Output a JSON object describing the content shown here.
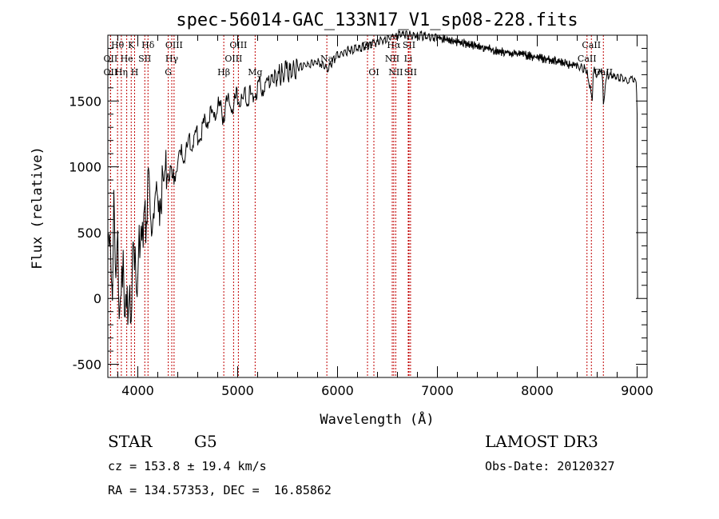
{
  "chart_data": {
    "type": "line",
    "title": "spec-56014-GAC_133N17_V1_sp08-228.fits",
    "xlabel": "Wavelength (Å)",
    "ylabel": "Flux (relative)",
    "xlim": [
      3700,
      9100
    ],
    "ylim": [
      -600,
      2000
    ],
    "x_ticks": [
      4000,
      5000,
      6000,
      7000,
      8000,
      9000
    ],
    "y_ticks": [
      -500,
      0,
      500,
      1000,
      1500
    ],
    "series": [
      {
        "name": "flux",
        "x": [
          3700,
          3720,
          3740,
          3760,
          3780,
          3800,
          3820,
          3840,
          3860,
          3880,
          3900,
          3920,
          3940,
          3960,
          3980,
          4000,
          4020,
          4040,
          4060,
          4080,
          4100,
          4150,
          4200,
          4250,
          4300,
          4350,
          4400,
          4450,
          4500,
          4550,
          4600,
          4650,
          4700,
          4750,
          4800,
          4850,
          4900,
          4950,
          5000,
          5050,
          5100,
          5150,
          5200,
          5250,
          5300,
          5400,
          5500,
          5600,
          5700,
          5800,
          5900,
          6000,
          6100,
          6200,
          6300,
          6400,
          6500,
          6600,
          6700,
          6800,
          6900,
          7000,
          7200,
          7400,
          7600,
          7800,
          8000,
          8200,
          8400,
          8500,
          8550,
          8560,
          8600,
          8650,
          8662,
          8700,
          8800,
          8900,
          8950,
          8990,
          9000,
          9005
        ],
        "y": [
          300,
          600,
          -100,
          700,
          200,
          500,
          -200,
          300,
          100,
          -150,
          0,
          -100,
          50,
          400,
          100,
          200,
          500,
          400,
          700,
          600,
          800,
          650,
          750,
          800,
          1000,
          900,
          1050,
          1100,
          1150,
          1200,
          1250,
          1300,
          1350,
          1400,
          1450,
          1400,
          1500,
          1450,
          1550,
          1500,
          1550,
          1520,
          1600,
          1600,
          1650,
          1700,
          1720,
          1750,
          1780,
          1800,
          1750,
          1850,
          1880,
          1900,
          1920,
          1950,
          1980,
          2000,
          2000,
          2000,
          1990,
          1980,
          1950,
          1920,
          1880,
          1860,
          1830,
          1800,
          1760,
          1740,
          1500,
          1740,
          1700,
          1720,
          1500,
          1700,
          1680,
          1660,
          1660,
          1650,
          1400,
          0
        ]
      }
    ],
    "spectral_lines": [
      {
        "name": "Hθ",
        "wavelength": 3797,
        "row": 1
      },
      {
        "name": "OII",
        "wavelength": 3727,
        "row": 2
      },
      {
        "name": "OII",
        "wavelength": 3727,
        "row": 3
      },
      {
        "name": "K",
        "wavelength": 3934,
        "row": 1
      },
      {
        "name": "He",
        "wavelength": 3889,
        "row": 2
      },
      {
        "name": "Hη",
        "wavelength": 3835,
        "row": 3
      },
      {
        "name": "Hδ",
        "wavelength": 4102,
        "row": 1
      },
      {
        "name": "SII",
        "wavelength": 4070,
        "row": 2
      },
      {
        "name": "H",
        "wavelength": 3968,
        "row": 3
      },
      {
        "name": "OIII",
        "wavelength": 4363,
        "row": 1
      },
      {
        "name": "Hγ",
        "wavelength": 4340,
        "row": 2
      },
      {
        "name": "G",
        "wavelength": 4305,
        "row": 3
      },
      {
        "name": "OIII",
        "wavelength": 5007,
        "row": 1
      },
      {
        "name": "OIII",
        "wavelength": 4959,
        "row": 2
      },
      {
        "name": "Hβ",
        "wavelength": 4861,
        "row": 3
      },
      {
        "name": "Mg",
        "wavelength": 5175,
        "row": 3
      },
      {
        "name": "Na",
        "wavelength": 5893,
        "row": 2
      },
      {
        "name": "OI",
        "wavelength": 6300,
        "row": 1
      },
      {
        "name": "OI",
        "wavelength": 6364,
        "row": 3
      },
      {
        "name": "Hα",
        "wavelength": 6563,
        "row": 1
      },
      {
        "name": "NII",
        "wavelength": 6548,
        "row": 2
      },
      {
        "name": "NII",
        "wavelength": 6583,
        "row": 3
      },
      {
        "name": "SII",
        "wavelength": 6716,
        "row": 1
      },
      {
        "name": "Li",
        "wavelength": 6708,
        "row": 2
      },
      {
        "name": "SII",
        "wavelength": 6731,
        "row": 3
      },
      {
        "name": "CaII",
        "wavelength": 8542,
        "row": 1
      },
      {
        "name": "CaII",
        "wavelength": 8498,
        "row": 2
      },
      {
        "name": "CaII",
        "wavelength": 8662,
        "row": 3
      }
    ]
  },
  "info": {
    "object_class": "STAR",
    "subclass": "G5",
    "survey": "LAMOST DR3",
    "redshift": "cz = 153.8 ± 19.4 km/s",
    "obs_date": "Obs-Date: 20120327",
    "coords": "RA = 134.57353, DEC =  16.85862"
  }
}
